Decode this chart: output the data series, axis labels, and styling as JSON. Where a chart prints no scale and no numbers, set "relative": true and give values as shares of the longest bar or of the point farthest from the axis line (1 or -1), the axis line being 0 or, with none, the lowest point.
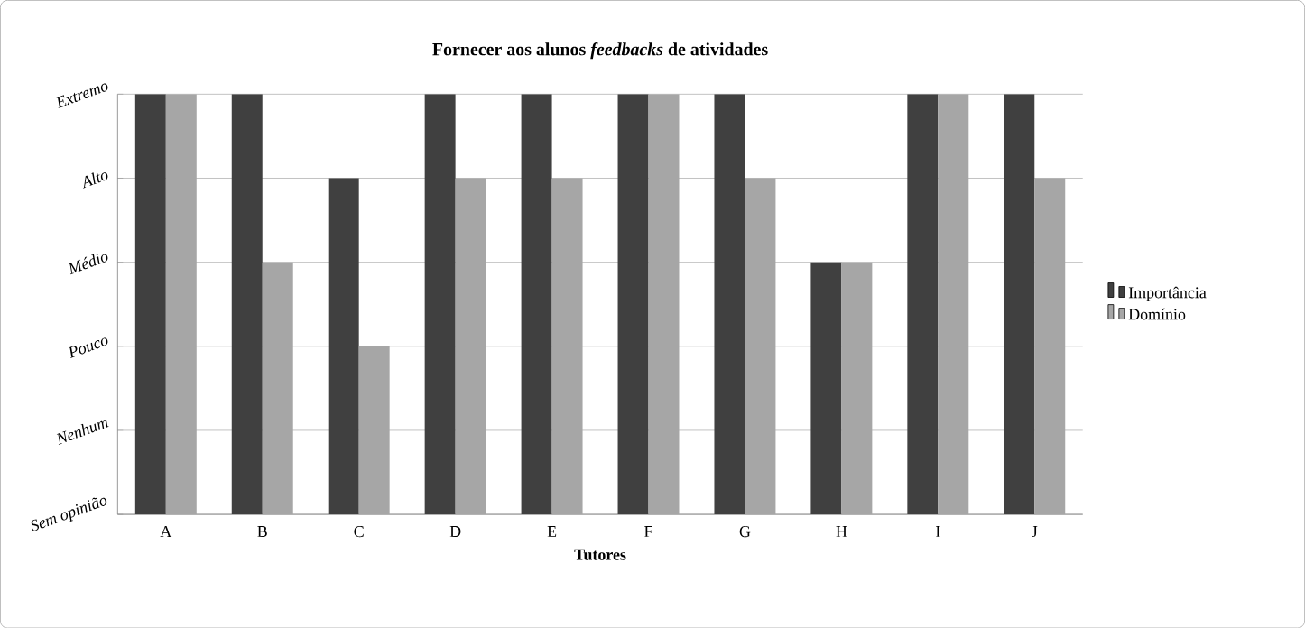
{
  "chart_data": {
    "type": "bar",
    "title": "Fornecer aos alunos *feedbacks* de atividades",
    "xlabel": "Tutores",
    "categories": [
      "A",
      "B",
      "C",
      "D",
      "E",
      "F",
      "G",
      "H",
      "I",
      "J"
    ],
    "series": [
      {
        "name": "Importância",
        "color": "#404040",
        "values": [
          1,
          1,
          0.8,
          1,
          1,
          1,
          1,
          0.6,
          1,
          1
        ]
      },
      {
        "name": "Domínio",
        "color": "#a6a6a6",
        "values": [
          1,
          0.6,
          0.4,
          0.8,
          0.8,
          1,
          0.8,
          0.6,
          1,
          0.8
        ]
      }
    ],
    "relative": true,
    "annotations": [
      "Sem opinião",
      "Nenhum",
      "Pouco",
      "Médio",
      "Alto",
      "Extremo"
    ],
    "grid": "y",
    "legend": "right"
  }
}
